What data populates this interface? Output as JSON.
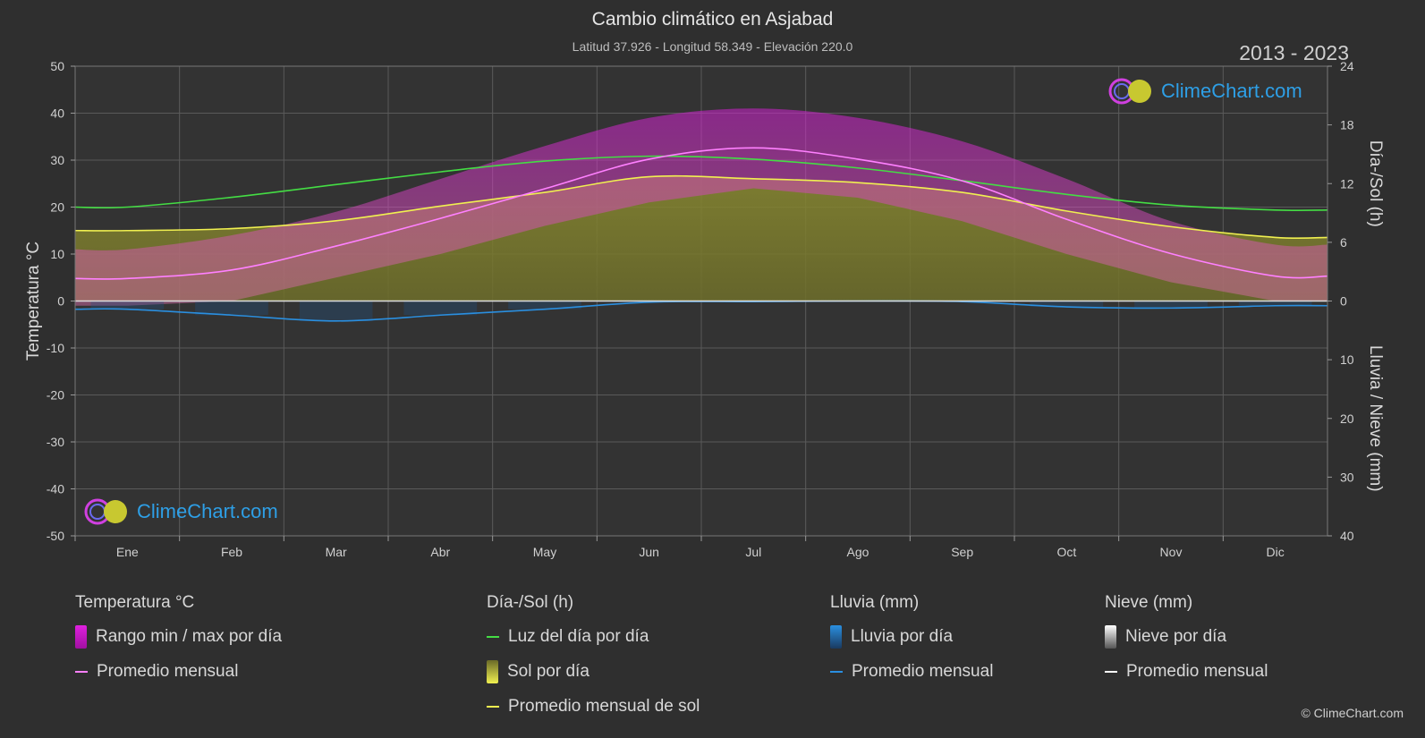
{
  "header": {
    "title": "Cambio climático en Asjabad",
    "subtitle": "Latitud 37.926 - Longitud 58.349 - Elevación 220.0",
    "years": "2013 - 2023"
  },
  "logo": {
    "text": "ClimeChart.com"
  },
  "copyright": "© ClimeChart.com",
  "colors": {
    "background": "#2f2f2f",
    "temp_range": "#e020e0",
    "temp_avg": "#ff80ff",
    "daylight": "#44dd44",
    "sunshine_fill": "#9a9a2e",
    "sunshine_avg": "#f0f050",
    "rain": "#2a8fe0",
    "snow": "#cccccc"
  },
  "chart_data": {
    "type": "line",
    "categories": [
      "Ene",
      "Feb",
      "Mar",
      "Abr",
      "May",
      "Jun",
      "Jul",
      "Ago",
      "Sep",
      "Oct",
      "Nov",
      "Dic"
    ],
    "y_left": {
      "label": "Temperatura °C",
      "range": [
        -50,
        50
      ],
      "ticks": [
        "50",
        "40",
        "30",
        "20",
        "10",
        "0",
        "-10",
        "-20",
        "-30",
        "-40",
        "-50"
      ]
    },
    "y_right_top": {
      "label": "Día-/Sol (h)",
      "range": [
        0,
        24
      ],
      "ticks": [
        "24",
        "18",
        "12",
        "6",
        "0"
      ]
    },
    "y_right_bottom": {
      "label": "Lluvia / Nieve (mm)",
      "range": [
        0,
        40
      ],
      "ticks": [
        "10",
        "20",
        "30",
        "40"
      ]
    },
    "grid": true,
    "series": [
      {
        "name": "Promedio mensual",
        "group": "temperature",
        "unit": "°C",
        "values": [
          4.8,
          6.6,
          11.7,
          17.6,
          23.9,
          30.2,
          32.6,
          30.2,
          25.6,
          17.4,
          10.1,
          5.3
        ]
      },
      {
        "name": "Rango min / max por día (max)",
        "group": "temperature",
        "unit": "°C",
        "values": [
          11,
          14,
          19,
          26,
          33,
          39,
          41,
          39,
          34,
          26,
          17,
          12
        ]
      },
      {
        "name": "Rango min / max por día (min)",
        "group": "temperature",
        "unit": "°C",
        "values": [
          -1,
          0,
          5,
          10,
          16,
          21,
          24,
          22,
          17,
          10,
          4,
          0
        ]
      },
      {
        "name": "Luz del día por día",
        "group": "sun",
        "unit": "h",
        "values": [
          9.6,
          10.6,
          11.9,
          13.2,
          14.3,
          14.8,
          14.5,
          13.6,
          12.3,
          10.9,
          9.8,
          9.3
        ]
      },
      {
        "name": "Promedio mensual de sol",
        "group": "sun",
        "unit": "h",
        "values": [
          7.2,
          7.4,
          8.2,
          9.7,
          11.1,
          12.7,
          12.5,
          12.1,
          11.1,
          9.2,
          7.6,
          6.5
        ]
      },
      {
        "name": "Lluvia promedio mensual",
        "group": "rain",
        "unit": "mm",
        "values": [
          1.4,
          2.4,
          3.4,
          2.4,
          1.4,
          0.2,
          0.1,
          0.0,
          0.1,
          1.0,
          1.2,
          0.8
        ]
      },
      {
        "name": "Nieve promedio mensual",
        "group": "snow",
        "unit": "mm",
        "values": [
          0.2,
          0.2,
          0.1,
          0,
          0,
          0,
          0,
          0,
          0,
          0,
          0.1,
          0.2
        ]
      }
    ]
  },
  "legend": {
    "temp": {
      "header": "Temperatura °C",
      "range": "Rango min / max por día",
      "avg": "Promedio mensual"
    },
    "sun": {
      "header": "Día-/Sol (h)",
      "daylight": "Luz del día por día",
      "sun": "Sol por día",
      "sun_avg": "Promedio mensual de sol"
    },
    "rain": {
      "header": "Lluvia (mm)",
      "rain": "Lluvia por día",
      "avg": "Promedio mensual"
    },
    "snow": {
      "header": "Nieve (mm)",
      "snow": "Nieve por día",
      "avg": "Promedio mensual"
    }
  }
}
